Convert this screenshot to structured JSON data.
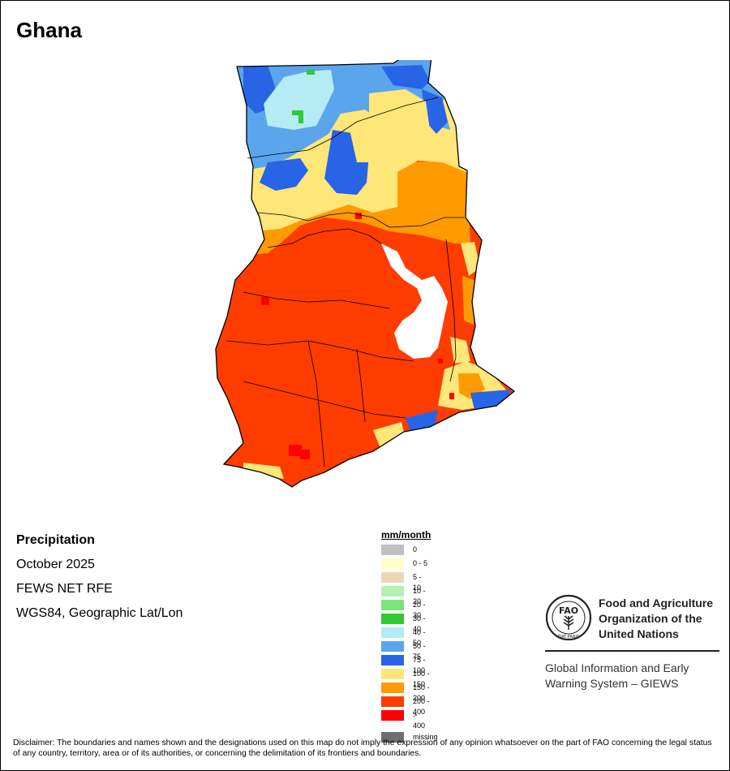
{
  "map": {
    "title": "Ghana"
  },
  "info": {
    "variable": "Precipitation",
    "period": "October 2025",
    "source": "FEWS NET RFE",
    "projection": "WGS84, Geographic Lat/Lon"
  },
  "legend": {
    "title": "mm/month",
    "items": [
      {
        "label": "0",
        "color": "#c0c0c0"
      },
      {
        "label": "0 - 5",
        "color": "#ffffc8"
      },
      {
        "label": "5 - 10",
        "color": "#ebd7b4"
      },
      {
        "label": "10 - 20",
        "color": "#b4f0b4"
      },
      {
        "label": "20 - 30",
        "color": "#78e678"
      },
      {
        "label": "30 - 40",
        "color": "#32c832"
      },
      {
        "label": "40 - 50",
        "color": "#b4ebf5"
      },
      {
        "label": "50 - 75",
        "color": "#5aa5eb"
      },
      {
        "label": "75 - 100",
        "color": "#2864e6"
      },
      {
        "label": "100 - 150",
        "color": "#ffe678"
      },
      {
        "label": "150 - 200",
        "color": "#ff9b00"
      },
      {
        "label": "200 - 400",
        "color": "#ff3c00"
      },
      {
        "label": "> 400",
        "color": "#ff0000"
      },
      {
        "label": "missing",
        "color": "#6e6e6e"
      }
    ]
  },
  "fao": {
    "name_lines": [
      "Food and Agriculture",
      "Organization of the",
      "United Nations"
    ],
    "seal_top": "FAO",
    "seal_motto": "FIAT PANIS",
    "giews_lines": [
      "Global Information and Early",
      "Warning System – GIEWS"
    ]
  },
  "disclaimer": "Disclaimer: The boundaries and names shown and the designations used on this map do not imply the expression of any opinion whatsoever on the part of FAO concerning the legal status of any country, territory, area or of its authorities, or concerning the delimitation of its frontiers and boundaries."
}
